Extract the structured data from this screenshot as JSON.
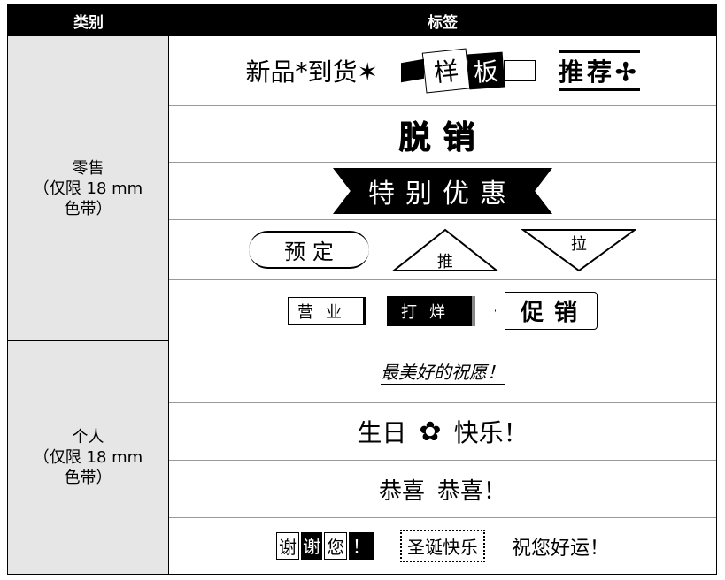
{
  "header": {
    "category": "类别",
    "labels": "标签"
  },
  "groups": [
    {
      "category": [
        "零售",
        "（仅限 18 mm",
        "色带）"
      ],
      "rows": [
        [
          "新品",
          "到货",
          "样",
          "板",
          "推荐"
        ],
        [
          "脱销"
        ],
        [
          "特别优惠"
        ],
        [
          "预",
          "定",
          "推",
          "拉"
        ],
        [
          "营业",
          "打烊",
          "促销"
        ]
      ]
    },
    {
      "category": [
        "个人",
        "（仅限 18 mm",
        "色带）"
      ],
      "rows": [
        [
          "最美好的祝愿！"
        ],
        [
          "生日",
          "快乐！"
        ],
        [
          "恭喜",
          "恭喜！"
        ],
        [
          "谢",
          "谢",
          "您",
          "！",
          "圣诞快乐",
          "祝您好运！"
        ]
      ]
    }
  ]
}
